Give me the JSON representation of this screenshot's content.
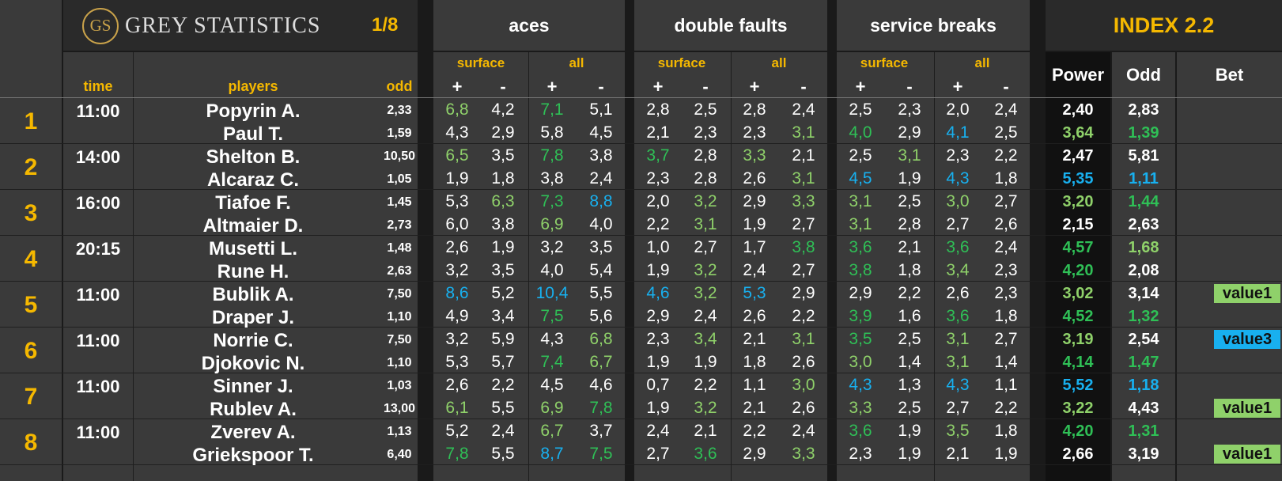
{
  "brand": {
    "logo_letters": "GS",
    "name": "GREY STATISTICS",
    "round": "1/8"
  },
  "headers": {
    "aces": "aces",
    "double_faults": "double faults",
    "service_breaks": "service breaks",
    "index": "INDEX 2.2",
    "time": "time",
    "players": "players",
    "odd": "odd",
    "power": "Power",
    "index_odd": "Odd",
    "bet": "Bet",
    "surface": "surface",
    "all": "all",
    "plus": "+",
    "minus": "-"
  },
  "colors": {
    "gold": "#f5b800",
    "green": "#2fbf56",
    "light_green": "#8fd16a",
    "blue": "#18b0ef",
    "white": "#ffffff",
    "badge_green": "#8fd16a",
    "badge_blue": "#18b0ef"
  },
  "matches": [
    {
      "num": "1",
      "time": "11:00",
      "players": [
        {
          "name": "Popyrin A.",
          "odd": "2,33",
          "aces": [
            [
              "6,8",
              "lg"
            ],
            [
              "4,2",
              "w"
            ],
            [
              "7,1",
              "g"
            ],
            [
              "5,1",
              "w"
            ]
          ],
          "df": [
            [
              "2,8",
              "w"
            ],
            [
              "2,5",
              "w"
            ],
            [
              "2,8",
              "w"
            ],
            [
              "2,4",
              "w"
            ]
          ],
          "sb": [
            [
              "2,5",
              "w"
            ],
            [
              "2,3",
              "w"
            ],
            [
              "2,0",
              "w"
            ],
            [
              "2,4",
              "w"
            ]
          ],
          "power": [
            "2,40",
            "w"
          ],
          "iodd": [
            "2,83",
            "w"
          ],
          "bet": null
        },
        {
          "name": "Paul T.",
          "odd": "1,59",
          "aces": [
            [
              "4,3",
              "w"
            ],
            [
              "2,9",
              "w"
            ],
            [
              "5,8",
              "w"
            ],
            [
              "4,5",
              "w"
            ]
          ],
          "df": [
            [
              "2,1",
              "w"
            ],
            [
              "2,3",
              "w"
            ],
            [
              "2,3",
              "w"
            ],
            [
              "3,1",
              "lg"
            ]
          ],
          "sb": [
            [
              "4,0",
              "g"
            ],
            [
              "2,9",
              "w"
            ],
            [
              "4,1",
              "b"
            ],
            [
              "2,5",
              "w"
            ]
          ],
          "power": [
            "3,64",
            "lg"
          ],
          "iodd": [
            "1,39",
            "g"
          ],
          "bet": null
        }
      ]
    },
    {
      "num": "2",
      "time": "14:00",
      "players": [
        {
          "name": "Shelton B.",
          "odd": "10,50",
          "aces": [
            [
              "6,5",
              "lg"
            ],
            [
              "3,5",
              "w"
            ],
            [
              "7,8",
              "g"
            ],
            [
              "3,8",
              "w"
            ]
          ],
          "df": [
            [
              "3,7",
              "g"
            ],
            [
              "2,8",
              "w"
            ],
            [
              "3,3",
              "lg"
            ],
            [
              "2,1",
              "w"
            ]
          ],
          "sb": [
            [
              "2,5",
              "w"
            ],
            [
              "3,1",
              "lg"
            ],
            [
              "2,3",
              "w"
            ],
            [
              "2,2",
              "w"
            ]
          ],
          "power": [
            "2,47",
            "w"
          ],
          "iodd": [
            "5,81",
            "w"
          ],
          "bet": null
        },
        {
          "name": "Alcaraz C.",
          "odd": "1,05",
          "aces": [
            [
              "1,9",
              "w"
            ],
            [
              "1,8",
              "w"
            ],
            [
              "3,8",
              "w"
            ],
            [
              "2,4",
              "w"
            ]
          ],
          "df": [
            [
              "2,3",
              "w"
            ],
            [
              "2,8",
              "w"
            ],
            [
              "2,6",
              "w"
            ],
            [
              "3,1",
              "lg"
            ]
          ],
          "sb": [
            [
              "4,5",
              "b"
            ],
            [
              "1,9",
              "w"
            ],
            [
              "4,3",
              "b"
            ],
            [
              "1,8",
              "w"
            ]
          ],
          "power": [
            "5,35",
            "b"
          ],
          "iodd": [
            "1,11",
            "b"
          ],
          "bet": null
        }
      ]
    },
    {
      "num": "3",
      "time": "16:00",
      "players": [
        {
          "name": "Tiafoe F.",
          "odd": "1,45",
          "aces": [
            [
              "5,3",
              "w"
            ],
            [
              "6,3",
              "lg"
            ],
            [
              "7,3",
              "g"
            ],
            [
              "8,8",
              "b"
            ]
          ],
          "df": [
            [
              "2,0",
              "w"
            ],
            [
              "3,2",
              "lg"
            ],
            [
              "2,9",
              "w"
            ],
            [
              "3,3",
              "lg"
            ]
          ],
          "sb": [
            [
              "3,1",
              "lg"
            ],
            [
              "2,5",
              "w"
            ],
            [
              "3,0",
              "lg"
            ],
            [
              "2,7",
              "w"
            ]
          ],
          "power": [
            "3,20",
            "lg"
          ],
          "iodd": [
            "1,44",
            "g"
          ],
          "bet": null
        },
        {
          "name": "Altmaier D.",
          "odd": "2,73",
          "aces": [
            [
              "6,0",
              "w"
            ],
            [
              "3,8",
              "w"
            ],
            [
              "6,9",
              "lg"
            ],
            [
              "4,0",
              "w"
            ]
          ],
          "df": [
            [
              "2,2",
              "w"
            ],
            [
              "3,1",
              "lg"
            ],
            [
              "1,9",
              "w"
            ],
            [
              "2,7",
              "w"
            ]
          ],
          "sb": [
            [
              "3,1",
              "lg"
            ],
            [
              "2,8",
              "w"
            ],
            [
              "2,7",
              "w"
            ],
            [
              "2,6",
              "w"
            ]
          ],
          "power": [
            "2,15",
            "w"
          ],
          "iodd": [
            "2,63",
            "w"
          ],
          "bet": null
        }
      ]
    },
    {
      "num": "4",
      "time": "20:15",
      "players": [
        {
          "name": "Musetti L.",
          "odd": "1,48",
          "aces": [
            [
              "2,6",
              "w"
            ],
            [
              "1,9",
              "w"
            ],
            [
              "3,2",
              "w"
            ],
            [
              "3,5",
              "w"
            ]
          ],
          "df": [
            [
              "1,0",
              "w"
            ],
            [
              "2,7",
              "w"
            ],
            [
              "1,7",
              "w"
            ],
            [
              "3,8",
              "g"
            ]
          ],
          "sb": [
            [
              "3,6",
              "g"
            ],
            [
              "2,1",
              "w"
            ],
            [
              "3,6",
              "g"
            ],
            [
              "2,4",
              "w"
            ]
          ],
          "power": [
            "4,57",
            "g"
          ],
          "iodd": [
            "1,68",
            "lg"
          ],
          "bet": null
        },
        {
          "name": "Rune H.",
          "odd": "2,63",
          "aces": [
            [
              "3,2",
              "w"
            ],
            [
              "3,5",
              "w"
            ],
            [
              "4,0",
              "w"
            ],
            [
              "5,4",
              "w"
            ]
          ],
          "df": [
            [
              "1,9",
              "w"
            ],
            [
              "3,2",
              "lg"
            ],
            [
              "2,4",
              "w"
            ],
            [
              "2,7",
              "w"
            ]
          ],
          "sb": [
            [
              "3,8",
              "g"
            ],
            [
              "1,8",
              "w"
            ],
            [
              "3,4",
              "lg"
            ],
            [
              "2,3",
              "w"
            ]
          ],
          "power": [
            "4,20",
            "g"
          ],
          "iodd": [
            "2,08",
            "w"
          ],
          "bet": null
        }
      ]
    },
    {
      "num": "5",
      "time": "11:00",
      "players": [
        {
          "name": "Bublik A.",
          "odd": "7,50",
          "aces": [
            [
              "8,6",
              "b"
            ],
            [
              "5,2",
              "w"
            ],
            [
              "10,4",
              "b"
            ],
            [
              "5,5",
              "w"
            ]
          ],
          "df": [
            [
              "4,6",
              "b"
            ],
            [
              "3,2",
              "lg"
            ],
            [
              "5,3",
              "b"
            ],
            [
              "2,9",
              "w"
            ]
          ],
          "sb": [
            [
              "2,9",
              "w"
            ],
            [
              "2,2",
              "w"
            ],
            [
              "2,6",
              "w"
            ],
            [
              "2,3",
              "w"
            ]
          ],
          "power": [
            "3,02",
            "lg"
          ],
          "iodd": [
            "3,14",
            "w"
          ],
          "bet": [
            "value1",
            "lg"
          ]
        },
        {
          "name": "Draper J.",
          "odd": "1,10",
          "aces": [
            [
              "4,9",
              "w"
            ],
            [
              "3,4",
              "w"
            ],
            [
              "7,5",
              "g"
            ],
            [
              "5,6",
              "w"
            ]
          ],
          "df": [
            [
              "2,9",
              "w"
            ],
            [
              "2,4",
              "w"
            ],
            [
              "2,6",
              "w"
            ],
            [
              "2,2",
              "w"
            ]
          ],
          "sb": [
            [
              "3,9",
              "g"
            ],
            [
              "1,6",
              "w"
            ],
            [
              "3,6",
              "g"
            ],
            [
              "1,8",
              "w"
            ]
          ],
          "power": [
            "4,52",
            "g"
          ],
          "iodd": [
            "1,32",
            "g"
          ],
          "bet": null
        }
      ]
    },
    {
      "num": "6",
      "time": "11:00",
      "players": [
        {
          "name": "Norrie C.",
          "odd": "7,50",
          "aces": [
            [
              "3,2",
              "w"
            ],
            [
              "5,9",
              "w"
            ],
            [
              "4,3",
              "w"
            ],
            [
              "6,8",
              "lg"
            ]
          ],
          "df": [
            [
              "2,3",
              "w"
            ],
            [
              "3,4",
              "lg"
            ],
            [
              "2,1",
              "w"
            ],
            [
              "3,1",
              "lg"
            ]
          ],
          "sb": [
            [
              "3,5",
              "g"
            ],
            [
              "2,5",
              "w"
            ],
            [
              "3,1",
              "lg"
            ],
            [
              "2,7",
              "w"
            ]
          ],
          "power": [
            "3,19",
            "lg"
          ],
          "iodd": [
            "2,54",
            "w"
          ],
          "bet": [
            "value3",
            "b"
          ]
        },
        {
          "name": "Djokovic N.",
          "odd": "1,10",
          "aces": [
            [
              "5,3",
              "w"
            ],
            [
              "5,7",
              "w"
            ],
            [
              "7,4",
              "g"
            ],
            [
              "6,7",
              "lg"
            ]
          ],
          "df": [
            [
              "1,9",
              "w"
            ],
            [
              "1,9",
              "w"
            ],
            [
              "1,8",
              "w"
            ],
            [
              "2,6",
              "w"
            ]
          ],
          "sb": [
            [
              "3,0",
              "lg"
            ],
            [
              "1,4",
              "w"
            ],
            [
              "3,1",
              "lg"
            ],
            [
              "1,4",
              "w"
            ]
          ],
          "power": [
            "4,14",
            "g"
          ],
          "iodd": [
            "1,47",
            "g"
          ],
          "bet": null
        }
      ]
    },
    {
      "num": "7",
      "time": "11:00",
      "players": [
        {
          "name": "Sinner J.",
          "odd": "1,03",
          "aces": [
            [
              "2,6",
              "w"
            ],
            [
              "2,2",
              "w"
            ],
            [
              "4,5",
              "w"
            ],
            [
              "4,6",
              "w"
            ]
          ],
          "df": [
            [
              "0,7",
              "w"
            ],
            [
              "2,2",
              "w"
            ],
            [
              "1,1",
              "w"
            ],
            [
              "3,0",
              "lg"
            ]
          ],
          "sb": [
            [
              "4,3",
              "b"
            ],
            [
              "1,3",
              "w"
            ],
            [
              "4,3",
              "b"
            ],
            [
              "1,1",
              "w"
            ]
          ],
          "power": [
            "5,52",
            "b"
          ],
          "iodd": [
            "1,18",
            "b"
          ],
          "bet": null
        },
        {
          "name": "Rublev A.",
          "odd": "13,00",
          "aces": [
            [
              "6,1",
              "lg"
            ],
            [
              "5,5",
              "w"
            ],
            [
              "6,9",
              "lg"
            ],
            [
              "7,8",
              "g"
            ]
          ],
          "df": [
            [
              "1,9",
              "w"
            ],
            [
              "3,2",
              "lg"
            ],
            [
              "2,1",
              "w"
            ],
            [
              "2,6",
              "w"
            ]
          ],
          "sb": [
            [
              "3,3",
              "lg"
            ],
            [
              "2,5",
              "w"
            ],
            [
              "2,7",
              "w"
            ],
            [
              "2,2",
              "w"
            ]
          ],
          "power": [
            "3,22",
            "lg"
          ],
          "iodd": [
            "4,43",
            "w"
          ],
          "bet": [
            "value1",
            "lg"
          ]
        }
      ]
    },
    {
      "num": "8",
      "time": "11:00",
      "players": [
        {
          "name": "Zverev A.",
          "odd": "1,13",
          "aces": [
            [
              "5,2",
              "w"
            ],
            [
              "2,4",
              "w"
            ],
            [
              "6,7",
              "lg"
            ],
            [
              "3,7",
              "w"
            ]
          ],
          "df": [
            [
              "2,4",
              "w"
            ],
            [
              "2,1",
              "w"
            ],
            [
              "2,2",
              "w"
            ],
            [
              "2,4",
              "w"
            ]
          ],
          "sb": [
            [
              "3,6",
              "g"
            ],
            [
              "1,9",
              "w"
            ],
            [
              "3,5",
              "lg"
            ],
            [
              "1,8",
              "w"
            ]
          ],
          "power": [
            "4,20",
            "g"
          ],
          "iodd": [
            "1,31",
            "g"
          ],
          "bet": null
        },
        {
          "name": "Griekspoor T.",
          "odd": "6,40",
          "aces": [
            [
              "7,8",
              "g"
            ],
            [
              "5,5",
              "w"
            ],
            [
              "8,7",
              "b"
            ],
            [
              "7,5",
              "g"
            ]
          ],
          "df": [
            [
              "2,7",
              "w"
            ],
            [
              "3,6",
              "g"
            ],
            [
              "2,9",
              "w"
            ],
            [
              "3,3",
              "lg"
            ]
          ],
          "sb": [
            [
              "2,3",
              "w"
            ],
            [
              "1,9",
              "w"
            ],
            [
              "2,1",
              "w"
            ],
            [
              "1,9",
              "w"
            ]
          ],
          "power": [
            "2,66",
            "w"
          ],
          "iodd": [
            "3,19",
            "w"
          ],
          "bet": [
            "value1",
            "lg"
          ]
        }
      ]
    }
  ]
}
